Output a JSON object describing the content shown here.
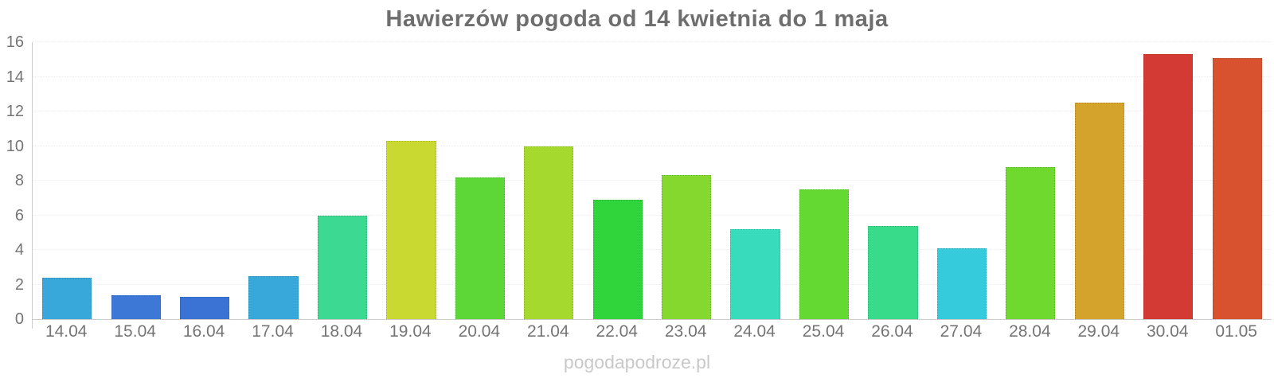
{
  "title": "Hawierzów pogoda od 14 kwietnia do 1 maja",
  "watermark": "pogodapodroze.pl",
  "chart_data": {
    "type": "bar",
    "title": "Hawierzów pogoda od 14 kwietnia do 1 maja",
    "categories": [
      "14.04",
      "15.04",
      "16.04",
      "17.04",
      "18.04",
      "19.04",
      "20.04",
      "21.04",
      "22.04",
      "23.04",
      "24.04",
      "25.04",
      "26.04",
      "27.04",
      "28.04",
      "29.04",
      "30.04",
      "01.05"
    ],
    "values": [
      2.4,
      1.4,
      1.3,
      2.5,
      6.0,
      10.3,
      8.2,
      10.0,
      6.9,
      8.3,
      5.2,
      7.5,
      5.4,
      4.1,
      8.8,
      12.5,
      15.3,
      15.1
    ],
    "bar_colors": [
      "#38a8db",
      "#3d78d6",
      "#3b73d4",
      "#38a8db",
      "#3bd992",
      "#c9d932",
      "#5dd638",
      "#a6d92e",
      "#30d53c",
      "#85d92e",
      "#38dcbc",
      "#63d932",
      "#38db8a",
      "#35cbdc",
      "#70d92e",
      "#d4a32c",
      "#d43a34",
      "#d85230"
    ],
    "xlabel": "",
    "ylabel": "",
    "ylim": [
      0,
      16
    ],
    "yticks": [
      0,
      2,
      4,
      6,
      8,
      10,
      12,
      14,
      16
    ],
    "grid": "horizontal-dotted",
    "legend": "none"
  },
  "style_colors": {
    "title_text": "#6e6e6e",
    "axis_labels": "#757575",
    "axis_line": "#cccccc",
    "gridline": "#ececec",
    "watermark_text": "#c9c9c9",
    "background": "#ffffff"
  }
}
